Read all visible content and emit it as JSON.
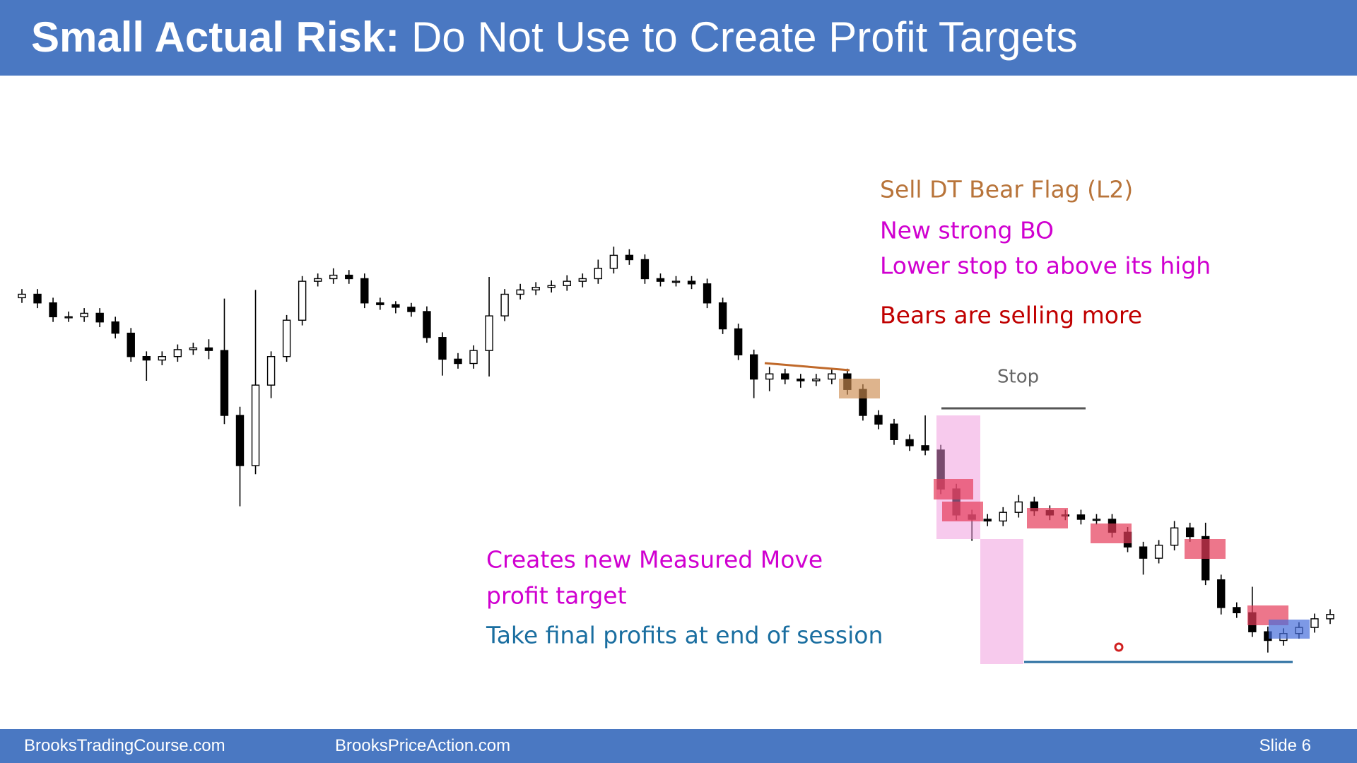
{
  "header": {
    "title_bold": "Small Actual Risk:",
    "title_rest": "Do Not Use to Create Profit Targets"
  },
  "annotations": {
    "sell": "Sell DT Bear Flag (L2)",
    "new_bo": "New strong BO",
    "lower_stop": "Lower stop to above its high",
    "bears": "Bears are selling more",
    "stop": "Stop",
    "mm1": "Creates new Measured Move",
    "mm2": "profit target",
    "final": "Take final profits at end of session"
  },
  "footer": {
    "left": "BrooksTradingCourse.com",
    "middle": "BrooksPriceAction.com",
    "slide": "Slide  6"
  },
  "chart_data": {
    "type": "candlestick",
    "ylim": [
      140,
      620
    ],
    "open": [
      556,
      560,
      550,
      534,
      534,
      538,
      528,
      515,
      488,
      484,
      488,
      496,
      498,
      495,
      420,
      362,
      455,
      488,
      530,
      575,
      578,
      582,
      578,
      550,
      548,
      545,
      540,
      510,
      485,
      480,
      495,
      535,
      560,
      565,
      568,
      570,
      575,
      578,
      590,
      605,
      600,
      578,
      575,
      575,
      572,
      550,
      520,
      490,
      462,
      468,
      462,
      460,
      462,
      468,
      450,
      420,
      410,
      392,
      385,
      380,
      335,
      305,
      300,
      298,
      308,
      320,
      310,
      305,
      305,
      300,
      300,
      285,
      268,
      255,
      270,
      290,
      280,
      230,
      198,
      192,
      170,
      160,
      168,
      175,
      185
    ],
    "high": [
      566,
      566,
      556,
      540,
      544,
      544,
      534,
      521,
      494,
      494,
      502,
      504,
      508,
      555,
      430,
      565,
      494,
      536,
      581,
      584,
      590,
      588,
      584,
      556,
      552,
      550,
      546,
      516,
      492,
      501,
      580,
      566,
      572,
      574,
      576,
      582,
      584,
      600,
      615,
      612,
      606,
      584,
      581,
      581,
      578,
      556,
      526,
      496,
      476,
      474,
      468,
      468,
      474,
      474,
      456,
      426,
      416,
      398,
      420,
      386,
      341,
      311,
      306,
      314,
      328,
      326,
      316,
      311,
      311,
      306,
      306,
      291,
      274,
      276,
      298,
      296,
      296,
      236,
      204,
      222,
      176,
      174,
      181,
      191,
      196
    ],
    "low": [
      550,
      544,
      528,
      528,
      528,
      522,
      509,
      482,
      460,
      478,
      482,
      490,
      485,
      410,
      315,
      352,
      440,
      482,
      524,
      569,
      572,
      572,
      544,
      542,
      538,
      534,
      504,
      466,
      474,
      474,
      465,
      529,
      554,
      559,
      562,
      564,
      568,
      572,
      584,
      594,
      572,
      569,
      569,
      566,
      544,
      514,
      484,
      440,
      448,
      456,
      452,
      454,
      456,
      444,
      414,
      404,
      386,
      379,
      374,
      329,
      299,
      275,
      292,
      292,
      302,
      304,
      299,
      299,
      294,
      294,
      279,
      262,
      236,
      249,
      264,
      274,
      224,
      190,
      186,
      164,
      146,
      154,
      162,
      169,
      179
    ],
    "close": [
      560,
      550,
      534,
      534,
      538,
      528,
      515,
      488,
      484,
      488,
      496,
      498,
      495,
      420,
      362,
      455,
      488,
      530,
      575,
      578,
      582,
      578,
      550,
      548,
      545,
      540,
      510,
      485,
      480,
      495,
      535,
      560,
      565,
      568,
      570,
      575,
      578,
      590,
      605,
      600,
      578,
      575,
      575,
      572,
      550,
      520,
      490,
      462,
      468,
      462,
      460,
      462,
      468,
      450,
      420,
      410,
      392,
      385,
      380,
      335,
      305,
      300,
      298,
      308,
      320,
      310,
      305,
      305,
      300,
      300,
      285,
      268,
      255,
      270,
      290,
      280,
      230,
      198,
      192,
      170,
      160,
      168,
      175,
      185,
      190
    ]
  }
}
